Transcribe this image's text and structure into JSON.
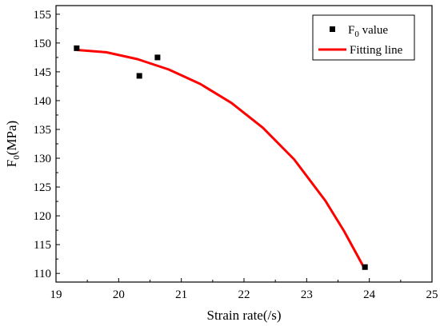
{
  "chart_data": {
    "type": "scatter",
    "xlabel": "Strain rate(/s)",
    "ylabel": {
      "main": "F",
      "sub": "0",
      "rest": "(MPa)"
    },
    "xlim": [
      19,
      25
    ],
    "ylim": [
      108.5,
      156.5
    ],
    "xticks": [
      19,
      20,
      21,
      22,
      23,
      24,
      25
    ],
    "yticks": [
      110,
      115,
      120,
      125,
      130,
      135,
      140,
      145,
      150,
      155
    ],
    "xtick_labels": [
      "19",
      "20",
      "21",
      "22",
      "23",
      "24",
      "25"
    ],
    "ytick_labels": [
      "110",
      "115",
      "120",
      "125",
      "130",
      "135",
      "140",
      "145",
      "150",
      "155"
    ],
    "grid": false,
    "legend_position": "top-right",
    "series": [
      {
        "name": {
          "main": "F",
          "sub": "0",
          "rest": " value"
        },
        "kind": "scatter",
        "marker": "square",
        "color": "#000000",
        "points": [
          {
            "x": 19.33,
            "y": 149.1
          },
          {
            "x": 20.33,
            "y": 144.3
          },
          {
            "x": 20.62,
            "y": 147.5
          },
          {
            "x": 23.93,
            "y": 111.1
          }
        ]
      },
      {
        "name": {
          "main": "Fitting line",
          "sub": "",
          "rest": ""
        },
        "kind": "line",
        "color": "#ff0000",
        "points": [
          {
            "x": 19.33,
            "y": 148.8
          },
          {
            "x": 19.8,
            "y": 148.4
          },
          {
            "x": 20.3,
            "y": 147.2
          },
          {
            "x": 20.8,
            "y": 145.4
          },
          {
            "x": 21.3,
            "y": 142.9
          },
          {
            "x": 21.8,
            "y": 139.6
          },
          {
            "x": 22.3,
            "y": 135.3
          },
          {
            "x": 22.8,
            "y": 129.8
          },
          {
            "x": 23.3,
            "y": 122.6
          },
          {
            "x": 23.6,
            "y": 117.3
          },
          {
            "x": 23.93,
            "y": 110.7
          }
        ]
      }
    ]
  }
}
